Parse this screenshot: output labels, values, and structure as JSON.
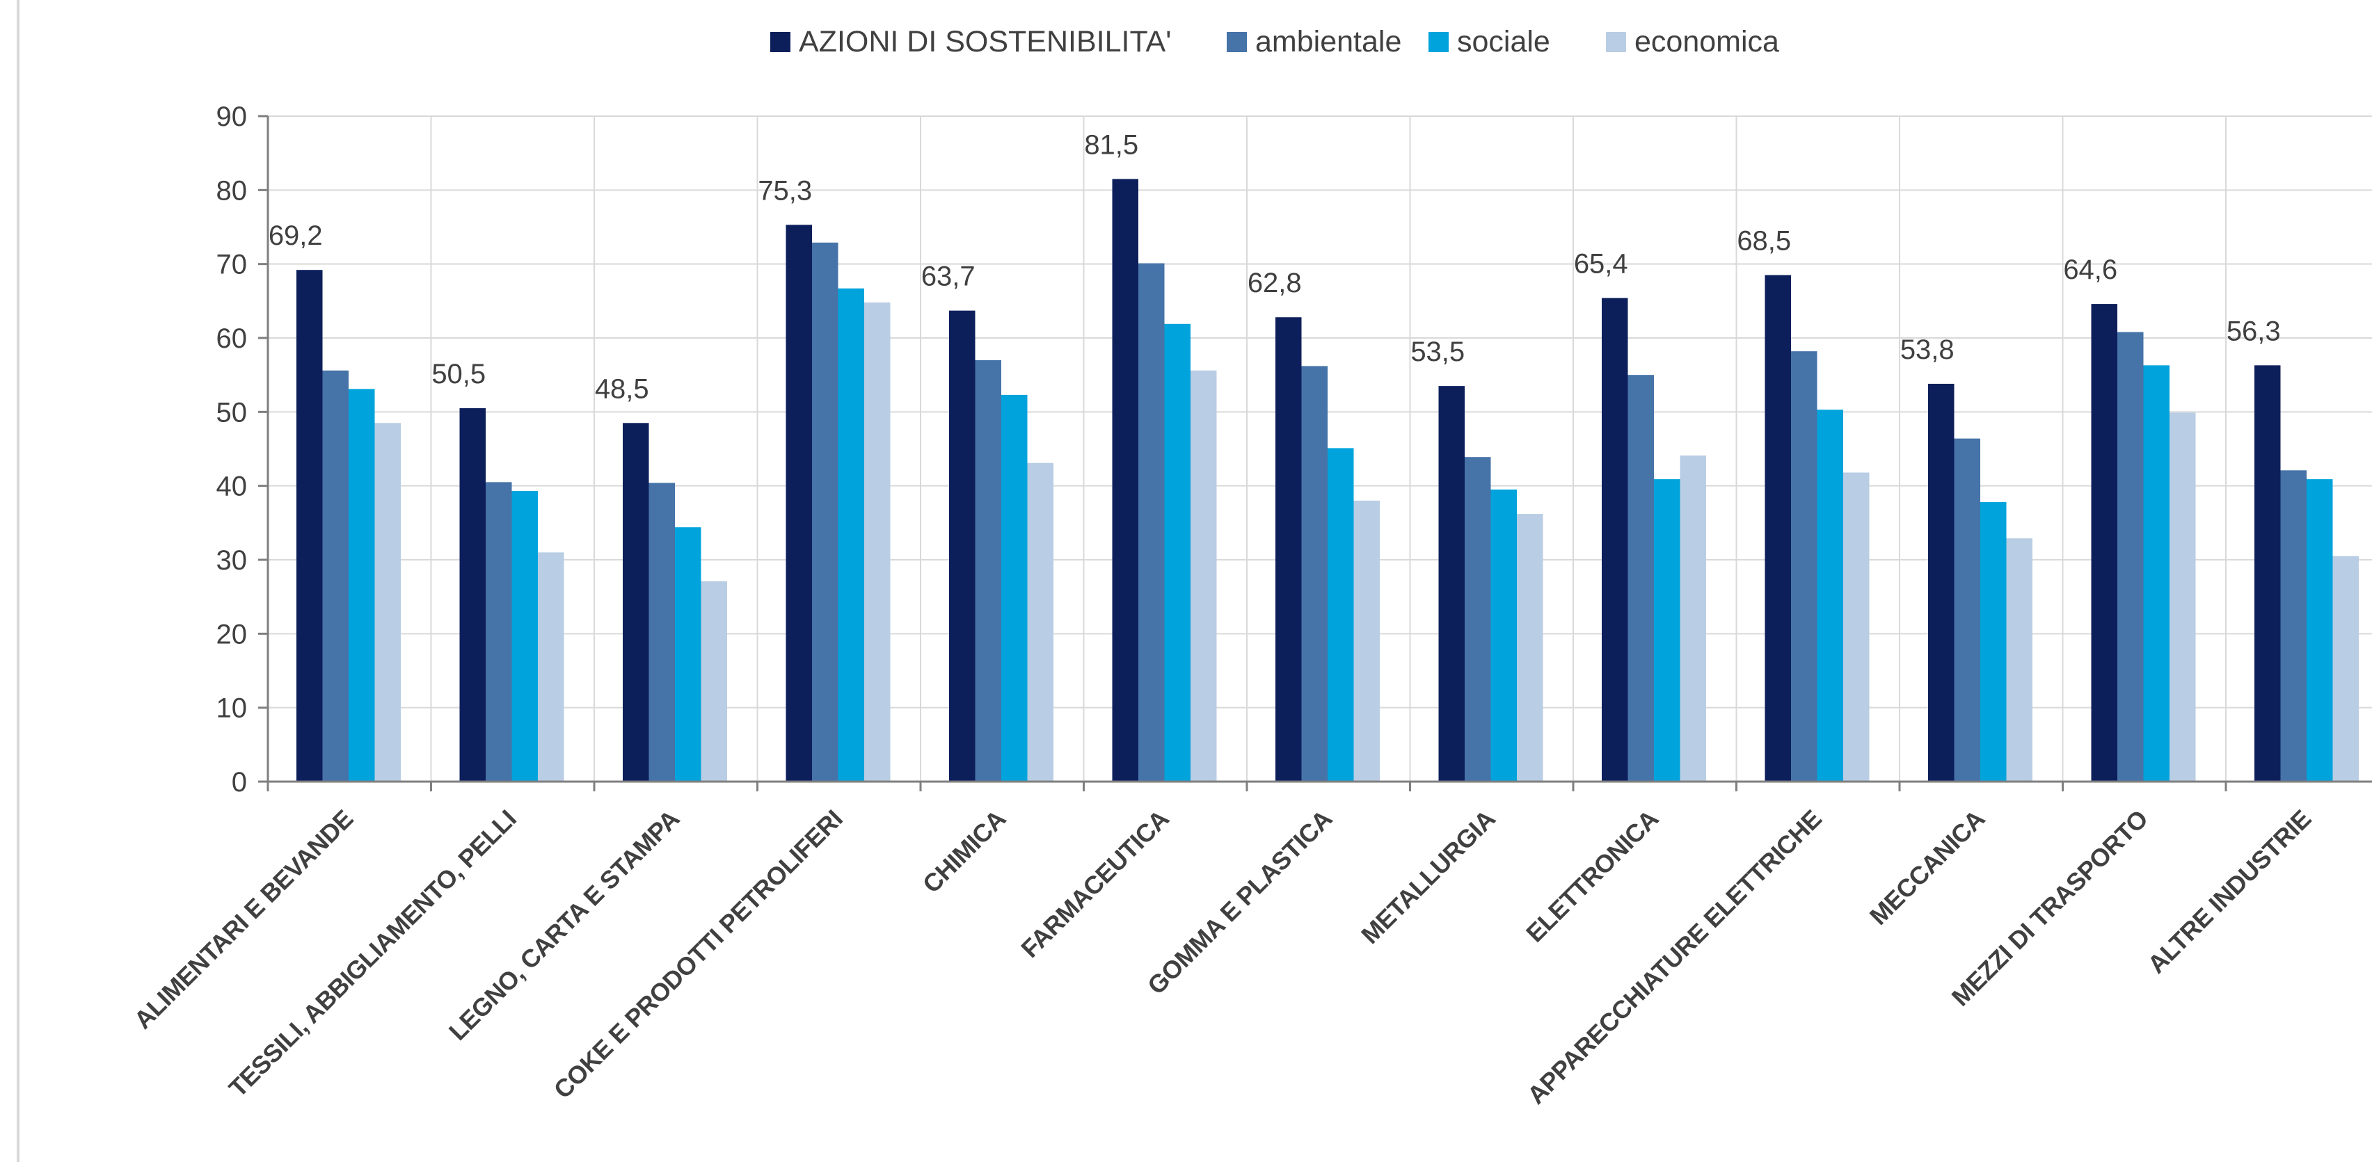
{
  "chart_data": {
    "type": "bar",
    "categories": [
      "ALIMENTARI E BEVANDE",
      "TESSILI, ABBIGLIAMENTO, PELLI",
      "LEGNO, CARTA E STAMPA",
      "COKE E PRODOTTI PETROLIFERI",
      "CHIMICA",
      "FARMACEUTICA",
      "GOMMA E PLASTICA",
      "METALLURGIA",
      "ELETTRONICA",
      "APPARECCHIATURE ELETTRICHE",
      "MECCANICA",
      "MEZZI DI TRASPORTO",
      "ALTRE INDUSTRIE"
    ],
    "series": [
      {
        "name": "AZIONI DI SOSTENIBILITA'",
        "color": "#0d1f5b",
        "values": [
          69.2,
          50.5,
          48.5,
          75.3,
          63.7,
          81.5,
          62.8,
          53.5,
          65.4,
          68.5,
          53.8,
          64.6,
          56.3
        ]
      },
      {
        "name": "ambientale",
        "color": "#4673a8",
        "values": [
          55.6,
          40.5,
          40.4,
          72.9,
          57.0,
          70.1,
          56.2,
          43.9,
          55.0,
          58.2,
          46.4,
          60.8,
          42.1
        ]
      },
      {
        "name": "sociale",
        "color": "#00a3dc",
        "values": [
          53.1,
          39.3,
          34.4,
          66.7,
          52.3,
          61.9,
          45.1,
          39.5,
          40.9,
          50.3,
          37.8,
          56.3,
          40.9
        ]
      },
      {
        "name": "economica",
        "color": "#b9cde4",
        "values": [
          48.5,
          31.0,
          27.1,
          64.8,
          43.1,
          55.6,
          38.0,
          36.2,
          44.1,
          41.8,
          32.9,
          49.9,
          30.5
        ]
      }
    ],
    "data_labels": [
      "69,2",
      "50,5",
      "48,5",
      "75,3",
      "63,7",
      "81,5",
      "62,8",
      "53,5",
      "65,4",
      "68,5",
      "53,8",
      "64,6",
      "56,3"
    ],
    "y_ticks": [
      "0",
      "10",
      "20",
      "30",
      "40",
      "50",
      "60",
      "70",
      "80",
      "90"
    ],
    "ylim": [
      0,
      90
    ],
    "grid": true,
    "legend_position": "top",
    "title": "",
    "xlabel": "",
    "ylabel": ""
  }
}
